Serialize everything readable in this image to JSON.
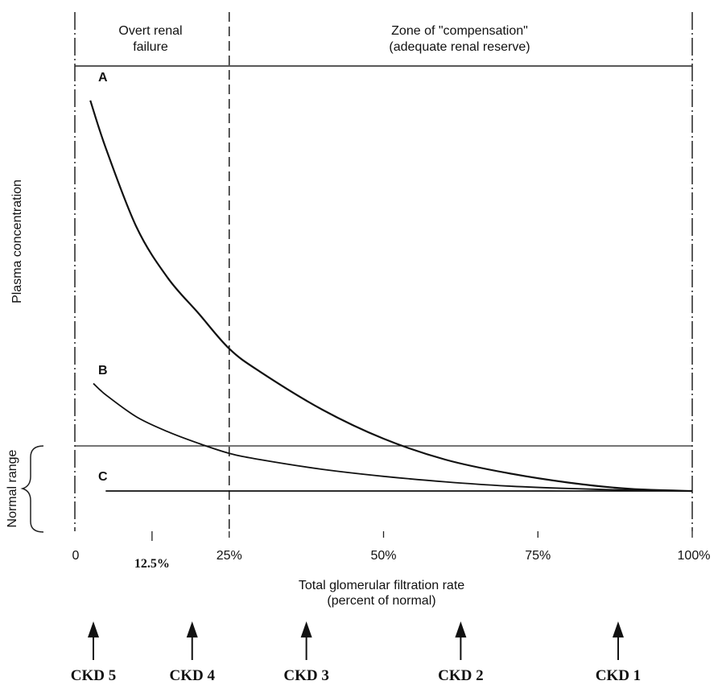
{
  "chart_data": {
    "type": "line",
    "xlabel": "Total glomerular filtration rate",
    "xlabel_sub": "(percent of normal)",
    "ylabel": "Plasma concentration",
    "xlim": [
      0,
      100
    ],
    "x_ticks": [
      {
        "value": 0,
        "label": "0"
      },
      {
        "value": 12.5,
        "label": "12.5%"
      },
      {
        "value": 25,
        "label": "25%"
      },
      {
        "value": 50,
        "label": "50%"
      },
      {
        "value": 75,
        "label": "75%"
      },
      {
        "value": 100,
        "label": "100%"
      }
    ],
    "zones": [
      {
        "label_line1": "Overt renal",
        "label_line2": "failure",
        "x_from": 0,
        "x_to": 25
      },
      {
        "label_line1": "Zone of \"compensation\"",
        "label_line2": "(adequate renal reserve)",
        "x_from": 25,
        "x_to": 100
      }
    ],
    "divider_x": 25,
    "normal_range": {
      "label": "Normal range"
    },
    "series": [
      {
        "name": "A",
        "x": [
          2.5,
          5,
          10,
          15,
          20,
          25,
          30,
          40,
          50,
          60,
          70,
          80,
          90,
          100
        ],
        "y": [
          0.953,
          0.84,
          0.65,
          0.53,
          0.445,
          0.36,
          0.305,
          0.215,
          0.145,
          0.095,
          0.063,
          0.04,
          0.025,
          0.02
        ]
      },
      {
        "name": "B",
        "x": [
          3,
          5,
          10,
          15,
          20,
          25,
          30,
          40,
          50,
          60,
          70,
          80,
          90,
          100
        ],
        "y": [
          0.277,
          0.25,
          0.197,
          0.162,
          0.134,
          0.11,
          0.095,
          0.072,
          0.055,
          0.042,
          0.032,
          0.026,
          0.022,
          0.02
        ]
      },
      {
        "name": "C",
        "x": [
          5,
          100
        ],
        "y": [
          0.02,
          0.02
        ]
      }
    ],
    "stages": [
      {
        "label": "CKD 5",
        "x": 3
      },
      {
        "label": "CKD 4",
        "x": 19
      },
      {
        "label": "CKD 3",
        "x": 37.5
      },
      {
        "label": "CKD 2",
        "x": 62.5
      },
      {
        "label": "CKD 1",
        "x": 88
      }
    ]
  }
}
